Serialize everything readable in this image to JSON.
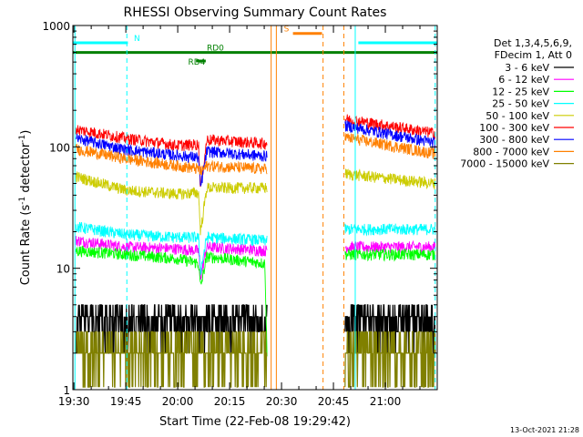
{
  "chart_data": {
    "type": "line",
    "title": "RHESSI Observing Summary Count Rates",
    "xlabel": "Start Time (22-Feb-08 19:29:42)",
    "ylabel": "Count Rate (s-1 detector-1)",
    "ylabel_parts": [
      "Count Rate (s",
      "-1",
      " detector",
      "-1",
      ")"
    ],
    "xlim": [
      19.495,
      21.25
    ],
    "ylim": [
      1,
      1000
    ],
    "yscale": "log",
    "x_unit": "hour of day (UT)",
    "x_ticks": [
      {
        "value": 19.5,
        "label": "19:30"
      },
      {
        "value": 19.75,
        "label": "19:45"
      },
      {
        "value": 20.0,
        "label": "20:00"
      },
      {
        "value": 20.25,
        "label": "20:15"
      },
      {
        "value": 20.5,
        "label": "20:30"
      },
      {
        "value": 20.75,
        "label": "20:45"
      },
      {
        "value": 21.0,
        "label": "21:00"
      }
    ],
    "y_ticks": [
      {
        "value": 1,
        "label": "1"
      },
      {
        "value": 10,
        "label": "10"
      },
      {
        "value": 100,
        "label": "100"
      },
      {
        "value": 1000,
        "label": "1000"
      }
    ],
    "legend_header": [
      "Det 1,3,4,5,6,9,",
      "FDecim 1, Att 0"
    ],
    "legend_position": "right",
    "flags": [
      {
        "label": "N",
        "color": "#00ffff",
        "y": 720,
        "segments": [
          [
            19.495,
            19.76
          ],
          [
            20.87,
            21.25
          ]
        ]
      },
      {
        "label": "S",
        "color": "#ff8000",
        "y": 860,
        "segments": [
          [
            20.555,
            20.695
          ]
        ]
      },
      {
        "label": "RD0",
        "color": "#008000",
        "y": 600,
        "segments": [
          [
            19.495,
            21.25
          ]
        ]
      },
      {
        "label": "RD4",
        "color": "#008000",
        "y": 510,
        "segments": [
          [
            20.088,
            20.135
          ]
        ]
      }
    ],
    "event_lines": [
      {
        "label": "N",
        "color": "#00ffff",
        "style": "dashed",
        "x": 19.755
      },
      {
        "label": "N",
        "color": "#00ffff",
        "style": "solid",
        "x": 19.505
      },
      {
        "label": "N",
        "color": "#00ffff",
        "style": "solid",
        "x": 20.855
      },
      {
        "label": "N",
        "color": "#00ffff",
        "style": "dashed",
        "x": 21.24
      },
      {
        "label": "S",
        "color": "#ff8000",
        "style": "solid",
        "x": 20.45
      },
      {
        "label": "S",
        "color": "#ff8000",
        "style": "solid",
        "x": 20.475
      },
      {
        "label": "S",
        "color": "#ff8000",
        "style": "dashed",
        "x": 20.7
      },
      {
        "label": "S",
        "color": "#ff8000",
        "style": "dashed",
        "x": 20.8
      }
    ],
    "data_gaps": [
      [
        20.43,
        20.805
      ]
    ],
    "series": [
      {
        "name": "3 - 6 keV",
        "color": "#000000",
        "values": [
          [
            19.51,
            4.0
          ],
          [
            20.1,
            3.5
          ],
          [
            20.11,
            2.0
          ],
          [
            20.14,
            3.5
          ],
          [
            20.42,
            3.5
          ],
          [
            20.805,
            3.6
          ],
          [
            21.24,
            3.6
          ]
        ],
        "band": [
          3,
          5
        ]
      },
      {
        "name": "6 - 12 keV",
        "color": "#ff00ff",
        "values": [
          [
            19.51,
            17
          ],
          [
            19.75,
            15
          ],
          [
            20.0,
            14.5
          ],
          [
            20.1,
            14
          ],
          [
            20.11,
            8.5
          ],
          [
            20.14,
            15
          ],
          [
            20.42,
            14
          ],
          [
            20.805,
            15
          ],
          [
            21.24,
            15
          ]
        ],
        "band": [
          13,
          19
        ]
      },
      {
        "name": "12 - 25 keV",
        "color": "#00ff00",
        "values": [
          [
            19.51,
            14
          ],
          [
            19.75,
            13
          ],
          [
            20.0,
            12
          ],
          [
            20.1,
            11
          ],
          [
            20.11,
            7.0
          ],
          [
            20.14,
            12.5
          ],
          [
            20.42,
            11
          ],
          [
            20.43,
            2.0
          ],
          [
            20.805,
            13
          ],
          [
            21.24,
            13
          ]
        ],
        "band": [
          11,
          16
        ]
      },
      {
        "name": "25 - 50 keV",
        "color": "#00ffff",
        "values": [
          [
            19.51,
            22
          ],
          [
            19.75,
            19
          ],
          [
            20.0,
            18
          ],
          [
            20.1,
            18
          ],
          [
            20.11,
            9.5
          ],
          [
            20.14,
            18
          ],
          [
            20.42,
            17
          ],
          [
            20.805,
            21
          ],
          [
            21.24,
            21
          ]
        ],
        "band": [
          17,
          25
        ]
      },
      {
        "name": "50 - 100 keV",
        "color": "#cccc00",
        "values": [
          [
            19.51,
            57
          ],
          [
            19.75,
            44
          ],
          [
            20.0,
            41
          ],
          [
            20.1,
            42
          ],
          [
            20.11,
            20
          ],
          [
            20.14,
            46
          ],
          [
            20.42,
            46
          ],
          [
            20.805,
            60
          ],
          [
            21.24,
            50
          ]
        ],
        "band": [
          40,
          60
        ]
      },
      {
        "name": "100 - 300 keV",
        "color": "#ff0000",
        "values": [
          [
            19.51,
            140
          ],
          [
            19.75,
            118
          ],
          [
            20.0,
            103
          ],
          [
            20.1,
            105
          ],
          [
            20.11,
            45
          ],
          [
            20.14,
            115
          ],
          [
            20.42,
            107
          ],
          [
            20.805,
            170
          ],
          [
            21.24,
            130
          ]
        ],
        "band": [
          100,
          150
        ]
      },
      {
        "name": "300 - 800 keV",
        "color": "#0000ff",
        "values": [
          [
            19.51,
            118
          ],
          [
            19.75,
            95
          ],
          [
            20.0,
            85
          ],
          [
            20.1,
            82
          ],
          [
            20.11,
            46
          ],
          [
            20.14,
            92
          ],
          [
            20.42,
            84
          ],
          [
            20.805,
            150
          ],
          [
            21.24,
            108
          ]
        ],
        "band": [
          80,
          130
        ]
      },
      {
        "name": "800 - 7000 keV",
        "color": "#ff8000",
        "values": [
          [
            19.51,
            96
          ],
          [
            19.75,
            80
          ],
          [
            20.0,
            70
          ],
          [
            20.1,
            66
          ],
          [
            20.11,
            62
          ],
          [
            20.14,
            70
          ],
          [
            20.42,
            66
          ],
          [
            20.805,
            120
          ],
          [
            21.24,
            88
          ]
        ],
        "band": [
          60,
          110
        ]
      },
      {
        "name": "7000 - 15000 keV",
        "color": "#808000",
        "values": [
          [
            19.51,
            3.0
          ],
          [
            20.1,
            2.0
          ],
          [
            20.42,
            2.5
          ],
          [
            20.805,
            2.8
          ],
          [
            21.24,
            2.6
          ]
        ],
        "band": [
          1,
          3
        ]
      }
    ]
  },
  "footer_stamp": "13-Oct-2021 21:28"
}
